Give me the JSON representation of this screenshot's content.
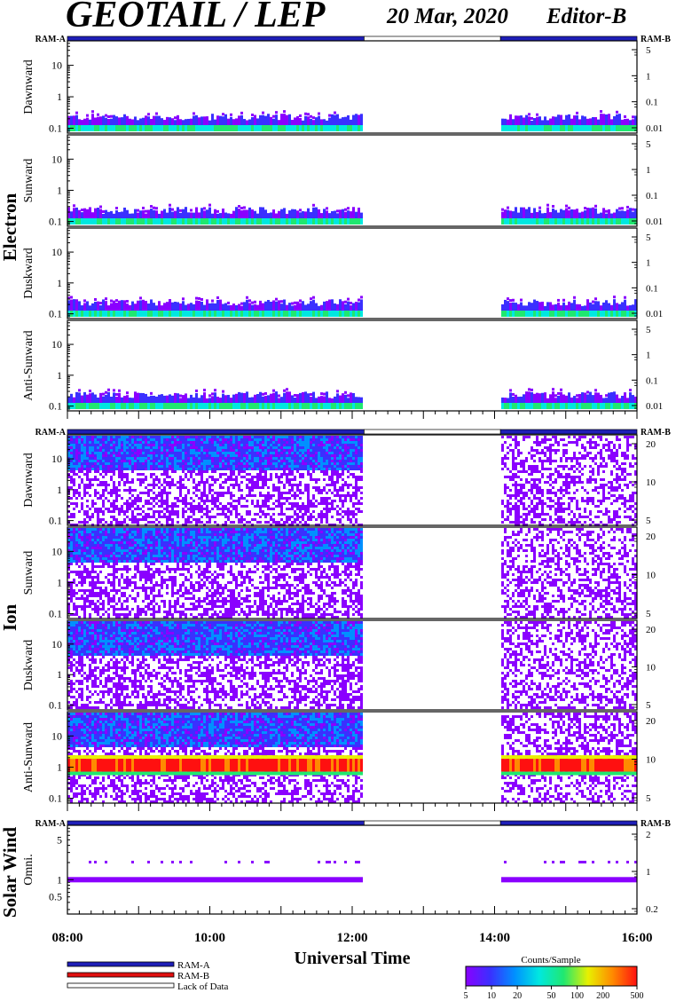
{
  "header": {
    "title": "GEOTAIL / LEP",
    "date": "20 Mar, 2020",
    "editor": "Editor-B"
  },
  "status_labels": {
    "left": "RAM-A",
    "right": "RAM-B"
  },
  "groups": [
    {
      "label": "Electron"
    },
    {
      "label": "Ion"
    },
    {
      "label": "Solar Wind"
    }
  ],
  "chart_data": {
    "type": "heatmap",
    "xlabel": "Universal Time",
    "x_range": [
      "08:00",
      "16:00"
    ],
    "x_ticks": [
      "08:00",
      "10:00",
      "12:00",
      "14:00",
      "16:00"
    ],
    "data_gaps": [
      [
        "12:10",
        "14:05"
      ]
    ],
    "status_bars": [
      {
        "state": "RAM-A",
        "from": "08:00",
        "to": "12:10"
      },
      {
        "state": "Lack of Data",
        "from": "12:10",
        "to": "14:05"
      },
      {
        "state": "RAM-A",
        "from": "14:05",
        "to": "16:00"
      }
    ],
    "panels": [
      {
        "group": "Electron",
        "label": "Dawnward",
        "left_ticks": [
          "0.1",
          "1",
          "10"
        ],
        "right_ticks": [
          "5",
          "1",
          "0.1",
          "0.01"
        ],
        "ylim": [
          0.07,
          60
        ],
        "pattern": "electron"
      },
      {
        "group": "Electron",
        "label": "Sunward",
        "left_ticks": [
          "0.1",
          "1",
          "10"
        ],
        "right_ticks": [
          "5",
          "1",
          "0.1",
          "0.01"
        ],
        "ylim": [
          0.07,
          60
        ],
        "pattern": "electron"
      },
      {
        "group": "Electron",
        "label": "Duskward",
        "left_ticks": [
          "0.1",
          "1",
          "10"
        ],
        "right_ticks": [
          "5",
          "1",
          "0.1",
          "0.01"
        ],
        "ylim": [
          0.07,
          60
        ],
        "pattern": "electron"
      },
      {
        "group": "Electron",
        "label": "Anti-Sunward",
        "left_ticks": [
          "0.1",
          "1",
          "10"
        ],
        "right_ticks": [
          "5",
          "1",
          "0.1",
          "0.01"
        ],
        "ylim": [
          0.07,
          60
        ],
        "pattern": "electron"
      },
      {
        "group": "Ion",
        "label": "Dawnward",
        "left_ticks": [
          "0.1",
          "1",
          "10"
        ],
        "right_ticks": [
          "20",
          "10",
          "5"
        ],
        "ylim": [
          0.07,
          60
        ],
        "pattern": "ion"
      },
      {
        "group": "Ion",
        "label": "Sunward",
        "left_ticks": [
          "0.1",
          "1",
          "10"
        ],
        "right_ticks": [
          "20",
          "10",
          "5"
        ],
        "ylim": [
          0.07,
          60
        ],
        "pattern": "ion"
      },
      {
        "group": "Ion",
        "label": "Duskward",
        "left_ticks": [
          "0.1",
          "1",
          "10"
        ],
        "right_ticks": [
          "20",
          "10",
          "5"
        ],
        "ylim": [
          0.07,
          60
        ],
        "pattern": "ion"
      },
      {
        "group": "Ion",
        "label": "Anti-Sunward",
        "left_ticks": [
          "0.1",
          "1",
          "10"
        ],
        "right_ticks": [
          "20",
          "10",
          "5"
        ],
        "ylim": [
          0.07,
          60
        ],
        "pattern": "ion-anti"
      },
      {
        "group": "Solar Wind",
        "label": "Omni.",
        "left_ticks": [
          "0.5",
          "1",
          "5"
        ],
        "right_ticks": [
          "2",
          "1",
          "0.2"
        ],
        "ylim": [
          0.25,
          9
        ],
        "pattern": "sw"
      }
    ],
    "legend": [
      {
        "label": "RAM-A",
        "color": "#1f1fb8"
      },
      {
        "label": "RAM-B",
        "color": "#e01010"
      },
      {
        "label": "Lack of Data",
        "color": "#ffffff"
      }
    ],
    "colorbar": {
      "title": "Counts/Sample",
      "ticks": [
        "5",
        "10",
        "20",
        "50",
        "100",
        "200",
        "500"
      ],
      "colors": [
        "#8a00ff",
        "#3a30ff",
        "#0090ff",
        "#00e8e0",
        "#20e870",
        "#e8f000",
        "#ff8a00",
        "#ff1010"
      ]
    }
  }
}
